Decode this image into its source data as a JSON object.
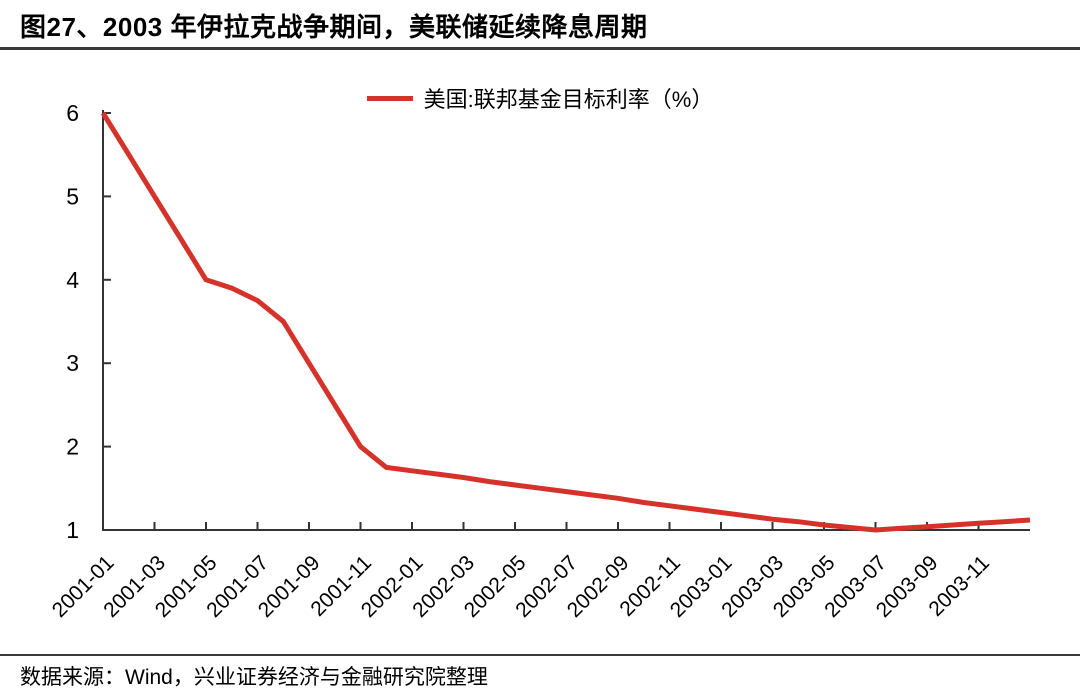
{
  "page": {
    "title": "图27、2003 年伊拉克战争期间，美联储延续降息周期",
    "source": "数据来源：Wind，兴业证券经济与金融研究院整理"
  },
  "chart_data": {
    "type": "line",
    "title": "图27、2003 年伊拉克战争期间，美联储延续降息周期",
    "legend_position": "top-center",
    "grid": false,
    "axis_color": "#333333",
    "legend": [
      {
        "label": "美国:联邦基金目标利率（%）",
        "color": "#d5322a"
      }
    ],
    "x": [
      "2001-01",
      "2001-02",
      "2001-03",
      "2001-04",
      "2001-05",
      "2001-06",
      "2001-07",
      "2001-08",
      "2001-09",
      "2001-10",
      "2001-11",
      "2001-12",
      "2002-01",
      "2002-02",
      "2002-03",
      "2002-04",
      "2002-05",
      "2002-06",
      "2002-07",
      "2002-08",
      "2002-09",
      "2002-10",
      "2002-11",
      "2002-12",
      "2003-01",
      "2003-02",
      "2003-03",
      "2003-04",
      "2003-05",
      "2003-06",
      "2003-07",
      "2003-08",
      "2003-09",
      "2003-10",
      "2003-11",
      "2003-12",
      "2004-01"
    ],
    "series": [
      {
        "name": "美国:联邦基金目标利率（%）",
        "color": "#d5322a",
        "values": [
          6.0,
          5.5,
          5.0,
          4.5,
          4.0,
          3.9,
          3.75,
          3.5,
          3.0,
          2.5,
          2.0,
          1.75,
          1.71,
          1.67,
          1.63,
          1.58,
          1.54,
          1.5,
          1.46,
          1.42,
          1.38,
          1.33,
          1.29,
          1.25,
          1.21,
          1.17,
          1.13,
          1.1,
          1.06,
          1.03,
          1.0,
          1.02,
          1.04,
          1.06,
          1.08,
          1.1,
          1.12
        ]
      }
    ],
    "xtick_labels": [
      "2001-01",
      "2001-03",
      "2001-05",
      "2001-07",
      "2001-09",
      "2001-11",
      "2002-01",
      "2002-03",
      "2002-05",
      "2002-07",
      "2002-09",
      "2002-11",
      "2003-01",
      "2003-03",
      "2003-05",
      "2003-07",
      "2003-09",
      "2003-11"
    ],
    "yticks": [
      1,
      2,
      3,
      4,
      5,
      6
    ],
    "ylim": [
      1,
      6
    ]
  }
}
